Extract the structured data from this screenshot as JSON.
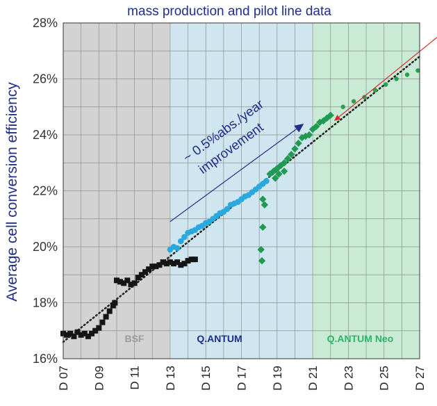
{
  "chart_data": {
    "type": "scatter",
    "title": "mass production and pilot line data",
    "ylabel": "Average cell conversion efficiency",
    "xlabel": "",
    "ylim": [
      16,
      28
    ],
    "xlim": [
      7,
      27
    ],
    "y_ticks": [
      "16%",
      "18%",
      "20%",
      "22%",
      "24%",
      "26%",
      "28%"
    ],
    "x_ticks": [
      "D 07",
      "D 09",
      "D 11",
      "D 13",
      "D 15",
      "D 17",
      "D 19",
      "D 21",
      "D 23",
      "D 25",
      "D 27"
    ],
    "grid": true,
    "regions": [
      {
        "label": "BSF",
        "x0": 7,
        "x1": 13,
        "color": "#d3d3d3",
        "label_color": "#9a9a9a"
      },
      {
        "label": "Q.ANTUM",
        "x0": 13,
        "x1": 21,
        "color": "#cfe5ef",
        "label_color": "#1f2d8c"
      },
      {
        "label": "Q.ANTUM Neo",
        "x0": 21,
        "x1": 27,
        "color": "#c9ebd5",
        "label_color": "#2fb36a"
      }
    ],
    "annotation": {
      "line1": "~ 0.5%abs./year",
      "line2": "improvement",
      "from": [
        13,
        20.9
      ],
      "to": [
        20.5,
        24.4
      ],
      "color": "#1f2d8c"
    },
    "trend_line": {
      "x": [
        7,
        27
      ],
      "y": [
        16.6,
        26.8
      ],
      "color": "#222222"
    },
    "red_arrow": {
      "from": [
        28.2,
        27.6
      ],
      "to": [
        22.2,
        24.5
      ],
      "color": "#d8262a"
    },
    "series": [
      {
        "marker": "square",
        "color": "#151515",
        "points": [
          [
            7.0,
            16.9
          ],
          [
            7.2,
            16.85
          ],
          [
            7.4,
            16.9
          ],
          [
            7.6,
            16.8
          ],
          [
            7.8,
            16.95
          ],
          [
            8.0,
            16.85
          ],
          [
            8.2,
            16.9
          ],
          [
            8.4,
            16.8
          ],
          [
            8.6,
            16.9
          ],
          [
            8.8,
            17.0
          ],
          [
            9.0,
            17.1
          ],
          [
            9.2,
            17.3
          ],
          [
            9.4,
            17.5
          ],
          [
            9.6,
            17.7
          ],
          [
            9.8,
            17.9
          ],
          [
            9.9,
            18.0
          ],
          [
            10.0,
            18.8
          ],
          [
            10.2,
            18.75
          ],
          [
            10.4,
            18.7
          ],
          [
            10.6,
            18.8
          ],
          [
            10.8,
            18.65
          ],
          [
            11.0,
            18.7
          ],
          [
            11.2,
            18.9
          ],
          [
            11.4,
            19.0
          ],
          [
            11.6,
            19.1
          ],
          [
            11.8,
            19.2
          ],
          [
            12.0,
            19.3
          ],
          [
            12.2,
            19.3
          ],
          [
            12.4,
            19.35
          ],
          [
            12.6,
            19.45
          ],
          [
            12.8,
            19.4
          ],
          [
            13.0,
            19.45
          ],
          [
            13.2,
            19.4
          ],
          [
            13.4,
            19.45
          ],
          [
            13.6,
            19.35
          ],
          [
            13.8,
            19.4
          ],
          [
            14.0,
            19.5
          ],
          [
            14.2,
            19.55
          ],
          [
            14.4,
            19.55
          ]
        ]
      },
      {
        "marker": "circle",
        "color": "#2aa9de",
        "points": [
          [
            13.0,
            19.9
          ],
          [
            13.2,
            20.0
          ],
          [
            13.4,
            19.95
          ],
          [
            13.6,
            20.2
          ],
          [
            13.8,
            20.35
          ],
          [
            14.0,
            20.5
          ],
          [
            14.2,
            20.55
          ],
          [
            14.4,
            20.6
          ],
          [
            14.6,
            20.7
          ],
          [
            14.8,
            20.75
          ],
          [
            15.0,
            20.85
          ],
          [
            15.2,
            20.9
          ],
          [
            15.4,
            21.0
          ],
          [
            15.6,
            21.1
          ],
          [
            15.8,
            21.2
          ],
          [
            16.0,
            21.25
          ],
          [
            16.2,
            21.35
          ],
          [
            16.4,
            21.5
          ],
          [
            16.6,
            21.55
          ],
          [
            16.8,
            21.6
          ],
          [
            17.0,
            21.7
          ],
          [
            17.2,
            21.8
          ],
          [
            17.4,
            21.85
          ],
          [
            17.6,
            21.95
          ],
          [
            17.8,
            22.05
          ],
          [
            18.0,
            22.15
          ],
          [
            18.2,
            22.25
          ],
          [
            18.4,
            22.35
          ]
        ]
      },
      {
        "marker": "diamond",
        "color": "#1e9a52",
        "points": [
          [
            18.2,
            21.7
          ],
          [
            18.3,
            21.5
          ],
          [
            18.2,
            20.7
          ],
          [
            18.1,
            19.9
          ],
          [
            18.15,
            19.5
          ],
          [
            18.6,
            22.6
          ],
          [
            18.8,
            22.7
          ],
          [
            19.0,
            22.8
          ],
          [
            19.2,
            22.9
          ],
          [
            19.4,
            23.0
          ],
          [
            19.6,
            23.15
          ],
          [
            19.8,
            23.3
          ],
          [
            20.0,
            23.5
          ],
          [
            20.2,
            23.7
          ],
          [
            20.4,
            23.9
          ],
          [
            20.6,
            23.95
          ],
          [
            20.8,
            24.0
          ],
          [
            21.0,
            24.2
          ],
          [
            21.2,
            24.3
          ],
          [
            21.4,
            24.45
          ],
          [
            21.6,
            24.5
          ],
          [
            21.8,
            24.6
          ],
          [
            22.0,
            24.7
          ],
          [
            18.9,
            22.45
          ],
          [
            19.1,
            22.6
          ],
          [
            19.4,
            22.7
          ]
        ]
      },
      {
        "marker": "circle-small",
        "color": "#2aa04e",
        "points": [
          [
            22.7,
            25.0
          ],
          [
            23.3,
            25.2
          ],
          [
            23.9,
            25.35
          ],
          [
            24.5,
            25.6
          ],
          [
            25.1,
            25.8
          ],
          [
            25.7,
            26.0
          ],
          [
            26.3,
            26.15
          ],
          [
            26.9,
            26.3
          ]
        ]
      }
    ]
  }
}
